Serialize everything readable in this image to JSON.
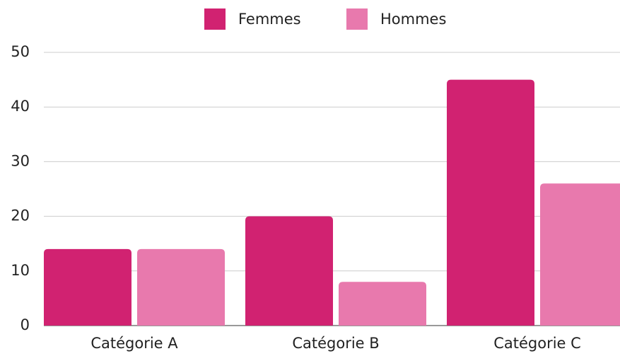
{
  "chart_data": {
    "type": "bar",
    "categories": [
      "Catégorie A",
      "Catégorie B",
      "Catégorie C"
    ],
    "series": [
      {
        "name": "Femmes",
        "color": "#d12271",
        "values": [
          14,
          20,
          45
        ]
      },
      {
        "name": "Hommes",
        "color": "#e879ad",
        "values": [
          14,
          8,
          26
        ]
      }
    ],
    "ylim": [
      0,
      50
    ],
    "yticks": [
      0,
      10,
      20,
      30,
      40,
      50
    ],
    "grid": true,
    "legend": "top"
  }
}
